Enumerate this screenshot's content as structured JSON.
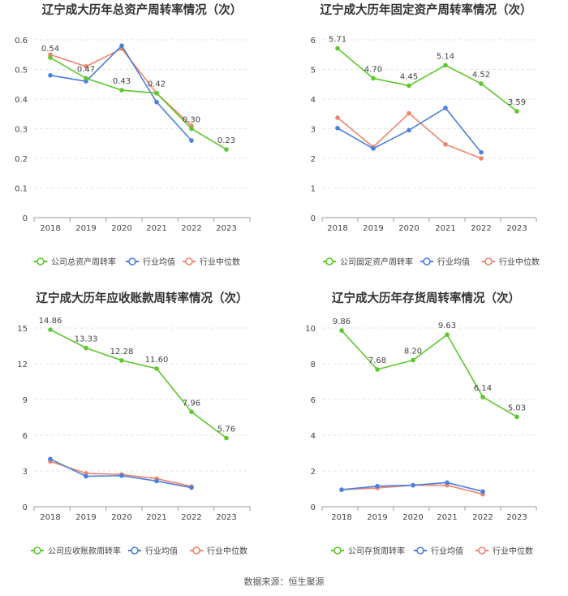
{
  "footer": "数据来源：恒生聚源",
  "colors": {
    "company": "#5cc82b",
    "avg": "#4a7fe0",
    "median": "#f2836b",
    "axis": "#999999",
    "grid": "#e6e6e6",
    "text": "#444444",
    "title": "#333333"
  },
  "chart_data": [
    {
      "type": "line",
      "title": "辽宁成大历年总资产周转率情况（次）",
      "categories": [
        "2018",
        "2019",
        "2020",
        "2021",
        "2022",
        "2023"
      ],
      "ylim": [
        0,
        0.6
      ],
      "yticks": [
        "0",
        "0.1",
        "0.2",
        "0.3",
        "0.4",
        "0.5",
        "0.6"
      ],
      "series": [
        {
          "name": "公司总资产周转率",
          "values": [
            0.54,
            0.47,
            0.43,
            0.42,
            0.3,
            0.23
          ],
          "labels": [
            "0.54",
            "0.47",
            "0.43",
            "0.42",
            "0.30",
            "0.23"
          ]
        },
        {
          "name": "行业均值",
          "values": [
            0.48,
            0.46,
            0.58,
            0.39,
            0.26,
            null
          ]
        },
        {
          "name": "行业中位数",
          "values": [
            0.55,
            0.51,
            0.57,
            0.42,
            0.31,
            null
          ]
        }
      ]
    },
    {
      "type": "line",
      "title": "辽宁成大历年固定资产周转率情况（次）",
      "categories": [
        "2018",
        "2019",
        "2020",
        "2021",
        "2022",
        "2023"
      ],
      "ylim": [
        0,
        6
      ],
      "yticks": [
        "0",
        "1",
        "2",
        "3",
        "4",
        "5",
        "6"
      ],
      "series": [
        {
          "name": "公司固定资产周转率",
          "values": [
            5.71,
            4.7,
            4.45,
            5.14,
            4.52,
            3.59
          ],
          "labels": [
            "5.71",
            "4.70",
            "4.45",
            "5.14",
            "4.52",
            "3.59"
          ]
        },
        {
          "name": "行业均值",
          "values": [
            3.02,
            2.33,
            2.95,
            3.7,
            2.2,
            null
          ]
        },
        {
          "name": "行业中位数",
          "values": [
            3.37,
            2.38,
            3.52,
            2.47,
            2.0,
            null
          ]
        }
      ]
    },
    {
      "type": "line",
      "title": "辽宁成大历年应收账款周转率情况（次）",
      "categories": [
        "2018",
        "2019",
        "2020",
        "2021",
        "2022",
        "2023"
      ],
      "ylim": [
        0,
        15
      ],
      "yticks": [
        "0",
        "3",
        "6",
        "9",
        "12",
        "15"
      ],
      "series": [
        {
          "name": "公司应收账款周转率",
          "values": [
            14.86,
            13.33,
            12.28,
            11.6,
            7.96,
            5.76
          ],
          "labels": [
            "14.86",
            "13.33",
            "12.28",
            "11.60",
            "7.96",
            "5.76"
          ]
        },
        {
          "name": "行业均值",
          "values": [
            4.0,
            2.55,
            2.6,
            2.15,
            1.6,
            null
          ]
        },
        {
          "name": "行业中位数",
          "values": [
            3.8,
            2.8,
            2.7,
            2.35,
            1.7,
            null
          ]
        }
      ]
    },
    {
      "type": "line",
      "title": "辽宁成大历年存货周转率情况（次）",
      "categories": [
        "2018",
        "2019",
        "2020",
        "2021",
        "2022",
        "2023"
      ],
      "ylim": [
        0,
        10
      ],
      "yticks": [
        "0",
        "2",
        "4",
        "6",
        "8",
        "10"
      ],
      "series": [
        {
          "name": "公司存货周转率",
          "values": [
            9.86,
            7.68,
            8.2,
            9.63,
            6.14,
            5.03
          ],
          "labels": [
            "9.86",
            "7.68",
            "8.20",
            "9.63",
            "6.14",
            "5.03"
          ]
        },
        {
          "name": "行业均值",
          "values": [
            0.95,
            1.15,
            1.2,
            1.35,
            0.85,
            null
          ]
        },
        {
          "name": "行业中位数",
          "values": [
            0.95,
            1.05,
            1.2,
            1.2,
            0.7,
            null
          ]
        }
      ]
    }
  ]
}
